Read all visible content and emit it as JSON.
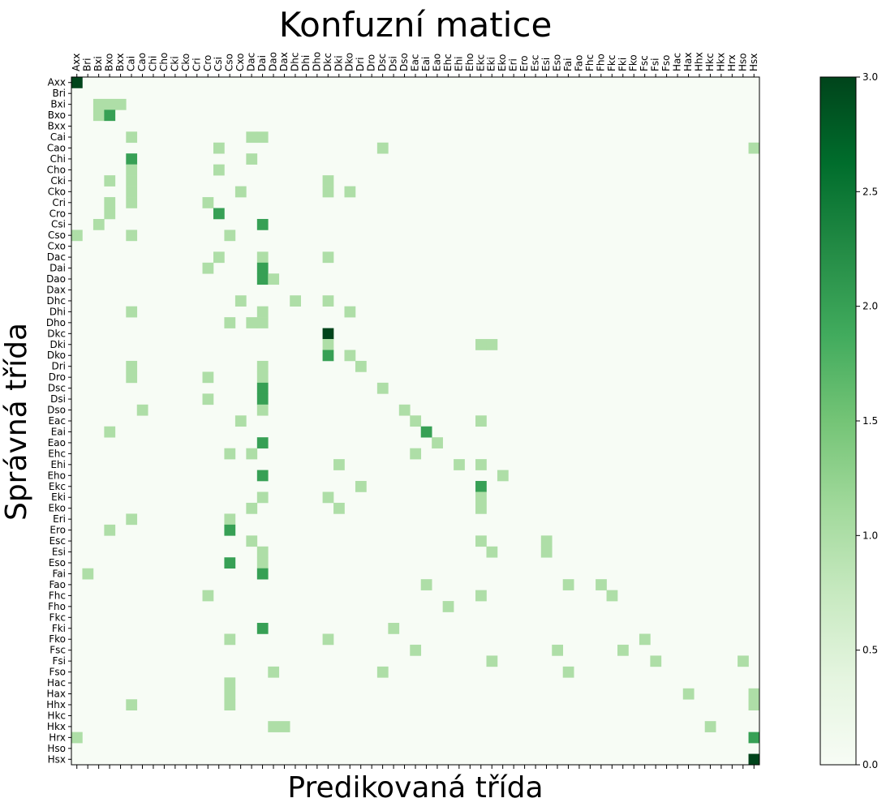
{
  "chart_data": {
    "type": "heatmap",
    "title": "Konfuzní matice",
    "xlabel": "Predikovaná třída",
    "ylabel": "Správná třída",
    "labels": [
      "Axx",
      "Bri",
      "Bxi",
      "Bxo",
      "Bxx",
      "Cai",
      "Cao",
      "Chi",
      "Cho",
      "Cki",
      "Cko",
      "Cri",
      "Cro",
      "Csi",
      "Cso",
      "Cxo",
      "Dac",
      "Dai",
      "Dao",
      "Dax",
      "Dhc",
      "Dhi",
      "Dho",
      "Dkc",
      "Dki",
      "Dko",
      "Dri",
      "Dro",
      "Dsc",
      "Dsi",
      "Dso",
      "Eac",
      "Eai",
      "Eao",
      "Ehc",
      "Ehi",
      "Eho",
      "Ekc",
      "Eki",
      "Eko",
      "Eri",
      "Ero",
      "Esc",
      "Esi",
      "Eso",
      "Fai",
      "Fao",
      "Fhc",
      "Fho",
      "Fkc",
      "Fki",
      "Fko",
      "Fsc",
      "Fsi",
      "Fso",
      "Hac",
      "Hax",
      "Hhx",
      "Hkc",
      "Hkx",
      "Hrx",
      "Hso",
      "Hsx"
    ],
    "cells": [
      [
        "Axx",
        "Axx",
        3
      ],
      [
        "Bxi",
        "Bxi",
        1
      ],
      [
        "Bxi",
        "Bxo",
        1
      ],
      [
        "Bxi",
        "Bxx",
        1
      ],
      [
        "Bxo",
        "Bxi",
        1
      ],
      [
        "Bxo",
        "Bxo",
        2
      ],
      [
        "Cai",
        "Cai",
        1
      ],
      [
        "Cai",
        "Dac",
        1
      ],
      [
        "Cai",
        "Dai",
        1
      ],
      [
        "Cao",
        "Csi",
        1
      ],
      [
        "Cao",
        "Dsc",
        1
      ],
      [
        "Cao",
        "Hsx",
        1
      ],
      [
        "Chi",
        "Cai",
        2
      ],
      [
        "Chi",
        "Dac",
        1
      ],
      [
        "Cho",
        "Cai",
        1
      ],
      [
        "Cho",
        "Csi",
        1
      ],
      [
        "Cki",
        "Bxo",
        1
      ],
      [
        "Cki",
        "Cai",
        1
      ],
      [
        "Cki",
        "Dkc",
        1
      ],
      [
        "Cko",
        "Cai",
        1
      ],
      [
        "Cko",
        "Cxo",
        1
      ],
      [
        "Cko",
        "Dkc",
        1
      ],
      [
        "Cko",
        "Dko",
        1
      ],
      [
        "Cri",
        "Bxo",
        1
      ],
      [
        "Cri",
        "Cai",
        1
      ],
      [
        "Cri",
        "Cro",
        1
      ],
      [
        "Cro",
        "Bxo",
        1
      ],
      [
        "Cro",
        "Csi",
        2
      ],
      [
        "Csi",
        "Bxi",
        1
      ],
      [
        "Csi",
        "Dai",
        2
      ],
      [
        "Cso",
        "Axx",
        1
      ],
      [
        "Cso",
        "Cai",
        1
      ],
      [
        "Cso",
        "Cso",
        1
      ],
      [
        "Dac",
        "Csi",
        1
      ],
      [
        "Dac",
        "Dai",
        1
      ],
      [
        "Dac",
        "Dkc",
        1
      ],
      [
        "Dai",
        "Cro",
        1
      ],
      [
        "Dai",
        "Dai",
        2
      ],
      [
        "Dao",
        "Dai",
        2
      ],
      [
        "Dao",
        "Dao",
        1
      ],
      [
        "Dhc",
        "Cxo",
        1
      ],
      [
        "Dhc",
        "Dhc",
        1
      ],
      [
        "Dhc",
        "Dkc",
        1
      ],
      [
        "Dhi",
        "Cai",
        1
      ],
      [
        "Dhi",
        "Dai",
        1
      ],
      [
        "Dhi",
        "Dko",
        1
      ],
      [
        "Dho",
        "Cso",
        1
      ],
      [
        "Dho",
        "Dac",
        1
      ],
      [
        "Dho",
        "Dai",
        1
      ],
      [
        "Dkc",
        "Dkc",
        3
      ],
      [
        "Dki",
        "Dkc",
        1
      ],
      [
        "Dki",
        "Ekc",
        1
      ],
      [
        "Dki",
        "Eki",
        1
      ],
      [
        "Dko",
        "Dkc",
        2
      ],
      [
        "Dko",
        "Dko",
        1
      ],
      [
        "Dri",
        "Cai",
        1
      ],
      [
        "Dri",
        "Dai",
        1
      ],
      [
        "Dri",
        "Dri",
        1
      ],
      [
        "Dro",
        "Cai",
        1
      ],
      [
        "Dro",
        "Cro",
        1
      ],
      [
        "Dro",
        "Dai",
        1
      ],
      [
        "Dsc",
        "Dai",
        2
      ],
      [
        "Dsc",
        "Dsc",
        1
      ],
      [
        "Dsi",
        "Cro",
        1
      ],
      [
        "Dsi",
        "Dai",
        2
      ],
      [
        "Dso",
        "Cao",
        1
      ],
      [
        "Dso",
        "Dai",
        1
      ],
      [
        "Dso",
        "Dso",
        1
      ],
      [
        "Eac",
        "Cxo",
        1
      ],
      [
        "Eac",
        "Eac",
        1
      ],
      [
        "Eac",
        "Ekc",
        1
      ],
      [
        "Eai",
        "Bxo",
        1
      ],
      [
        "Eai",
        "Eai",
        2
      ],
      [
        "Eao",
        "Dai",
        2
      ],
      [
        "Eao",
        "Eao",
        1
      ],
      [
        "Ehc",
        "Cso",
        1
      ],
      [
        "Ehc",
        "Dac",
        1
      ],
      [
        "Ehc",
        "Eac",
        1
      ],
      [
        "Ehi",
        "Dki",
        1
      ],
      [
        "Ehi",
        "Ehi",
        1
      ],
      [
        "Ehi",
        "Ekc",
        1
      ],
      [
        "Eho",
        "Dai",
        2
      ],
      [
        "Eho",
        "Eko",
        1
      ],
      [
        "Ekc",
        "Dri",
        1
      ],
      [
        "Ekc",
        "Ekc",
        2
      ],
      [
        "Eki",
        "Dai",
        1
      ],
      [
        "Eki",
        "Dkc",
        1
      ],
      [
        "Eki",
        "Ekc",
        1
      ],
      [
        "Eko",
        "Dac",
        1
      ],
      [
        "Eko",
        "Dki",
        1
      ],
      [
        "Eko",
        "Ekc",
        1
      ],
      [
        "Eri",
        "Cai",
        1
      ],
      [
        "Eri",
        "Cso",
        1
      ],
      [
        "Ero",
        "Bxo",
        1
      ],
      [
        "Ero",
        "Cso",
        2
      ],
      [
        "Esc",
        "Dac",
        1
      ],
      [
        "Esc",
        "Ekc",
        1
      ],
      [
        "Esc",
        "Esi",
        1
      ],
      [
        "Esi",
        "Dai",
        1
      ],
      [
        "Esi",
        "Eki",
        1
      ],
      [
        "Esi",
        "Esi",
        1
      ],
      [
        "Eso",
        "Cso",
        2
      ],
      [
        "Eso",
        "Dai",
        1
      ],
      [
        "Fai",
        "Bri",
        1
      ],
      [
        "Fai",
        "Dai",
        2
      ],
      [
        "Fao",
        "Eai",
        1
      ],
      [
        "Fao",
        "Fai",
        1
      ],
      [
        "Fao",
        "Fho",
        1
      ],
      [
        "Fhc",
        "Cro",
        1
      ],
      [
        "Fhc",
        "Ekc",
        1
      ],
      [
        "Fhc",
        "Fkc",
        1
      ],
      [
        "Fho",
        "Ehc",
        1
      ],
      [
        "Fki",
        "Dai",
        2
      ],
      [
        "Fki",
        "Dsi",
        1
      ],
      [
        "Fko",
        "Cso",
        1
      ],
      [
        "Fko",
        "Dkc",
        1
      ],
      [
        "Fko",
        "Fsc",
        1
      ],
      [
        "Fsc",
        "Eac",
        1
      ],
      [
        "Fsc",
        "Eso",
        1
      ],
      [
        "Fsc",
        "Fki",
        1
      ],
      [
        "Fsi",
        "Eki",
        1
      ],
      [
        "Fsi",
        "Fsi",
        1
      ],
      [
        "Fsi",
        "Hso",
        1
      ],
      [
        "Fso",
        "Dao",
        1
      ],
      [
        "Fso",
        "Dsc",
        1
      ],
      [
        "Fso",
        "Fai",
        1
      ],
      [
        "Hac",
        "Cso",
        1
      ],
      [
        "Hax",
        "Cso",
        1
      ],
      [
        "Hax",
        "Hax",
        1
      ],
      [
        "Hax",
        "Hsx",
        1
      ],
      [
        "Hhx",
        "Cai",
        1
      ],
      [
        "Hhx",
        "Cso",
        1
      ],
      [
        "Hhx",
        "Hsx",
        1
      ],
      [
        "Hkx",
        "Dao",
        1
      ],
      [
        "Hkx",
        "Dax",
        1
      ],
      [
        "Hkx",
        "Hkc",
        1
      ],
      [
        "Hrx",
        "Axx",
        1
      ],
      [
        "Hrx",
        "Hsx",
        2
      ],
      [
        "Hsx",
        "Hsx",
        3
      ]
    ],
    "colorbar": {
      "range": [
        0,
        3
      ],
      "ticks": [
        "0.0",
        "0.5",
        "1.0",
        "1.5",
        "2.0",
        "2.5",
        "3.0"
      ],
      "colormap": [
        "#f7fcf5",
        "#e5f5e0",
        "#c7e9c0",
        "#a1d99b",
        "#74c476",
        "#41ab5d",
        "#238b45",
        "#006d2c",
        "#00441b"
      ]
    },
    "grid": false
  }
}
